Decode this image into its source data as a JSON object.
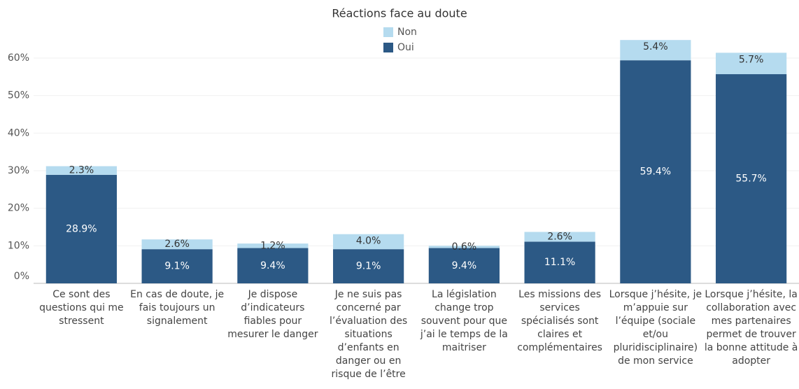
{
  "chart_data": {
    "type": "stacked_bar",
    "title": "Réactions face au doute",
    "categories": [
      "Ce sont des questions qui me stressent",
      "En cas de doute, je fais toujours un signalement",
      "Je dispose d’indicateurs fiables pour mesurer le danger",
      "Je ne suis pas concerné par l’évaluation des situations d’enfants en danger ou en risque de l’être",
      "La législation change trop souvent pour que j’ai le temps de la maitriser",
      "Les missions des services spécialisés sont claires et complémentaires",
      "Lorsque j’hésite, je m’appuie sur l’équipe (sociale et/ou pluridisciplinaire) de mon service",
      "Lorsque j’hésite, la collaboration avec mes partenaires permet de trouver la bonne attitude à adopter"
    ],
    "series": [
      {
        "name": "Oui",
        "color": "#2c5985",
        "values": [
          28.9,
          9.1,
          9.4,
          9.1,
          9.4,
          11.1,
          59.4,
          55.7
        ],
        "value_labels": [
          "28.9%",
          "9.1%",
          "9.4%",
          "9.1%",
          "9.4%",
          "11.1%",
          "59.4%",
          "55.7%"
        ]
      },
      {
        "name": "Non",
        "color": "#b5dbef",
        "values": [
          2.3,
          2.6,
          1.2,
          4.0,
          0.6,
          2.6,
          5.4,
          5.7
        ],
        "value_labels": [
          "2.3%",
          "2.6%",
          "1.2%",
          "4.0%",
          "0.6%",
          "2.6%",
          "5.4%",
          "5.7%"
        ]
      }
    ],
    "ylim": [
      0,
      68
    ],
    "yticks": [
      {
        "value": 0,
        "label": "0%"
      },
      {
        "value": 10,
        "label": "10%"
      },
      {
        "value": 20,
        "label": "20%"
      },
      {
        "value": 30,
        "label": "30%"
      },
      {
        "value": 40,
        "label": "40%"
      },
      {
        "value": 50,
        "label": "50%"
      },
      {
        "value": 60,
        "label": "60%"
      }
    ],
    "grid": true
  }
}
